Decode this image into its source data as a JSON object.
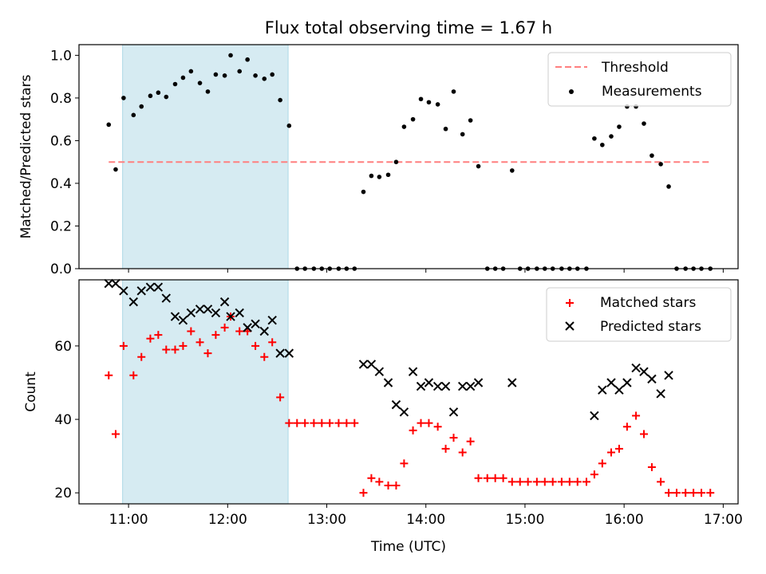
{
  "figure": {
    "title": "Flux total observing time = 1.67 h"
  },
  "chart_data": [
    {
      "type": "scatter",
      "panel": "top",
      "ylabel": "Matched/Predicted stars",
      "xlim": [
        10.5,
        17.15
      ],
      "ylim": [
        0,
        1.05
      ],
      "yticks": [
        0.0,
        0.2,
        0.4,
        0.6,
        0.8,
        1.0
      ],
      "ytick_labels": [
        "0.0",
        "0.2",
        "0.4",
        "0.6",
        "0.8",
        "1.0"
      ],
      "shaded_span": {
        "x0": 10.94,
        "x1": 12.61,
        "color": "#add8e6"
      },
      "threshold": {
        "name": "Threshold",
        "value": 0.5,
        "x0": 10.8,
        "x1": 16.88,
        "color": "#ff7f7f"
      },
      "legend": {
        "position": "upper right",
        "entries": [
          "Threshold",
          "Measurements"
        ]
      },
      "series": [
        {
          "name": "Measurements",
          "color": "#000000",
          "points": [
            [
              10.8,
              0.675
            ],
            [
              10.87,
              0.465
            ],
            [
              10.95,
              0.8
            ],
            [
              11.05,
              0.72
            ],
            [
              11.13,
              0.76
            ],
            [
              11.22,
              0.81
            ],
            [
              11.3,
              0.825
            ],
            [
              11.38,
              0.805
            ],
            [
              11.47,
              0.865
            ],
            [
              11.55,
              0.895
            ],
            [
              11.63,
              0.925
            ],
            [
              11.72,
              0.87
            ],
            [
              11.8,
              0.83
            ],
            [
              11.88,
              0.91
            ],
            [
              11.97,
              0.905
            ],
            [
              12.03,
              1.0
            ],
            [
              12.12,
              0.925
            ],
            [
              12.2,
              0.98
            ],
            [
              12.28,
              0.905
            ],
            [
              12.37,
              0.89
            ],
            [
              12.45,
              0.91
            ],
            [
              12.53,
              0.79
            ],
            [
              12.62,
              0.67
            ],
            [
              12.7,
              0.0
            ],
            [
              12.78,
              0.0
            ],
            [
              12.87,
              0.0
            ],
            [
              12.95,
              0.0
            ],
            [
              13.03,
              0.0
            ],
            [
              13.12,
              0.0
            ],
            [
              13.2,
              0.0
            ],
            [
              13.28,
              0.0
            ],
            [
              13.37,
              0.36
            ],
            [
              13.45,
              0.435
            ],
            [
              13.53,
              0.43
            ],
            [
              13.62,
              0.44
            ],
            [
              13.7,
              0.5
            ],
            [
              13.78,
              0.665
            ],
            [
              13.87,
              0.7
            ],
            [
              13.95,
              0.795
            ],
            [
              14.03,
              0.78
            ],
            [
              14.12,
              0.77
            ],
            [
              14.2,
              0.655
            ],
            [
              14.28,
              0.83
            ],
            [
              14.37,
              0.63
            ],
            [
              14.45,
              0.695
            ],
            [
              14.53,
              0.48
            ],
            [
              14.62,
              0.0
            ],
            [
              14.7,
              0.0
            ],
            [
              14.78,
              0.0
            ],
            [
              14.87,
              0.46
            ],
            [
              14.95,
              0.0
            ],
            [
              15.03,
              0.0
            ],
            [
              15.12,
              0.0
            ],
            [
              15.2,
              0.0
            ],
            [
              15.28,
              0.0
            ],
            [
              15.37,
              0.0
            ],
            [
              15.45,
              0.0
            ],
            [
              15.53,
              0.0
            ],
            [
              15.62,
              0.0
            ],
            [
              15.7,
              0.61
            ],
            [
              15.78,
              0.58
            ],
            [
              15.87,
              0.62
            ],
            [
              15.95,
              0.665
            ],
            [
              16.03,
              0.76
            ],
            [
              16.12,
              0.76
            ],
            [
              16.2,
              0.68
            ],
            [
              16.28,
              0.53
            ],
            [
              16.37,
              0.49
            ],
            [
              16.45,
              0.385
            ],
            [
              16.53,
              0.0
            ],
            [
              16.62,
              0.0
            ],
            [
              16.7,
              0.0
            ],
            [
              16.78,
              0.0
            ],
            [
              16.87,
              0.0
            ]
          ]
        }
      ]
    },
    {
      "type": "scatter",
      "panel": "bottom",
      "xlabel": "Time (UTC)",
      "ylabel": "Count",
      "xlim": [
        10.5,
        17.15
      ],
      "ylim": [
        17,
        78
      ],
      "yticks": [
        20,
        40,
        60
      ],
      "ytick_labels": [
        "20",
        "40",
        "60"
      ],
      "xticks": [
        11,
        12,
        13,
        14,
        15,
        16,
        17
      ],
      "xtick_labels": [
        "11:00",
        "12:00",
        "13:00",
        "14:00",
        "15:00",
        "16:00",
        "17:00"
      ],
      "shaded_span": {
        "x0": 10.94,
        "x1": 12.61,
        "color": "#add8e6"
      },
      "legend": {
        "position": "upper right",
        "entries": [
          "Matched stars",
          "Predicted stars"
        ]
      },
      "series": [
        {
          "name": "Matched stars",
          "marker": "plus",
          "color": "#ff0000",
          "points": [
            [
              10.8,
              52
            ],
            [
              10.87,
              36
            ],
            [
              10.95,
              60
            ],
            [
              11.05,
              52
            ],
            [
              11.13,
              57
            ],
            [
              11.22,
              62
            ],
            [
              11.3,
              63
            ],
            [
              11.38,
              59
            ],
            [
              11.47,
              59
            ],
            [
              11.55,
              60
            ],
            [
              11.63,
              64
            ],
            [
              11.72,
              61
            ],
            [
              11.8,
              58
            ],
            [
              11.88,
              63
            ],
            [
              11.97,
              65
            ],
            [
              12.03,
              68
            ],
            [
              12.12,
              64
            ],
            [
              12.2,
              64
            ],
            [
              12.28,
              60
            ],
            [
              12.37,
              57
            ],
            [
              12.45,
              61
            ],
            [
              12.53,
              46
            ],
            [
              12.62,
              39
            ],
            [
              12.7,
              39
            ],
            [
              12.78,
              39
            ],
            [
              12.87,
              39
            ],
            [
              12.95,
              39
            ],
            [
              13.03,
              39
            ],
            [
              13.12,
              39
            ],
            [
              13.2,
              39
            ],
            [
              13.28,
              39
            ],
            [
              13.37,
              20
            ],
            [
              13.45,
              24
            ],
            [
              13.53,
              23
            ],
            [
              13.62,
              22
            ],
            [
              13.7,
              22
            ],
            [
              13.78,
              28
            ],
            [
              13.87,
              37
            ],
            [
              13.95,
              39
            ],
            [
              14.03,
              39
            ],
            [
              14.12,
              38
            ],
            [
              14.2,
              32
            ],
            [
              14.28,
              35
            ],
            [
              14.37,
              31
            ],
            [
              14.45,
              34
            ],
            [
              14.53,
              24
            ],
            [
              14.62,
              24
            ],
            [
              14.7,
              24
            ],
            [
              14.78,
              24
            ],
            [
              14.87,
              23
            ],
            [
              14.95,
              23
            ],
            [
              15.03,
              23
            ],
            [
              15.12,
              23
            ],
            [
              15.2,
              23
            ],
            [
              15.28,
              23
            ],
            [
              15.37,
              23
            ],
            [
              15.45,
              23
            ],
            [
              15.53,
              23
            ],
            [
              15.62,
              23
            ],
            [
              15.7,
              25
            ],
            [
              15.78,
              28
            ],
            [
              15.87,
              31
            ],
            [
              15.95,
              32
            ],
            [
              16.03,
              38
            ],
            [
              16.12,
              41
            ],
            [
              16.2,
              36
            ],
            [
              16.28,
              27
            ],
            [
              16.37,
              23
            ],
            [
              16.45,
              20
            ],
            [
              16.53,
              20
            ],
            [
              16.62,
              20
            ],
            [
              16.7,
              20
            ],
            [
              16.78,
              20
            ],
            [
              16.87,
              20
            ]
          ]
        },
        {
          "name": "Predicted stars",
          "marker": "x",
          "color": "#000000",
          "points": [
            [
              10.8,
              77
            ],
            [
              10.87,
              77
            ],
            [
              10.95,
              75
            ],
            [
              11.05,
              72
            ],
            [
              11.13,
              75
            ],
            [
              11.22,
              76
            ],
            [
              11.3,
              76
            ],
            [
              11.38,
              73
            ],
            [
              11.47,
              68
            ],
            [
              11.55,
              67
            ],
            [
              11.63,
              69
            ],
            [
              11.72,
              70
            ],
            [
              11.8,
              70
            ],
            [
              11.88,
              69
            ],
            [
              11.97,
              72
            ],
            [
              12.03,
              68
            ],
            [
              12.12,
              69
            ],
            [
              12.2,
              65
            ],
            [
              12.28,
              66
            ],
            [
              12.37,
              64
            ],
            [
              12.45,
              67
            ],
            [
              12.53,
              58
            ],
            [
              12.62,
              58
            ],
            [
              13.37,
              55
            ],
            [
              13.45,
              55
            ],
            [
              13.53,
              53
            ],
            [
              13.62,
              50
            ],
            [
              13.7,
              44
            ],
            [
              13.78,
              42
            ],
            [
              13.87,
              53
            ],
            [
              13.95,
              49
            ],
            [
              14.03,
              50
            ],
            [
              14.12,
              49
            ],
            [
              14.2,
              49
            ],
            [
              14.28,
              42
            ],
            [
              14.37,
              49
            ],
            [
              14.45,
              49
            ],
            [
              14.53,
              50
            ],
            [
              14.87,
              50
            ],
            [
              15.7,
              41
            ],
            [
              15.78,
              48
            ],
            [
              15.87,
              50
            ],
            [
              15.95,
              48
            ],
            [
              16.03,
              50
            ],
            [
              16.12,
              54
            ],
            [
              16.2,
              53
            ],
            [
              16.28,
              51
            ],
            [
              16.37,
              47
            ],
            [
              16.45,
              52
            ]
          ]
        }
      ]
    }
  ]
}
